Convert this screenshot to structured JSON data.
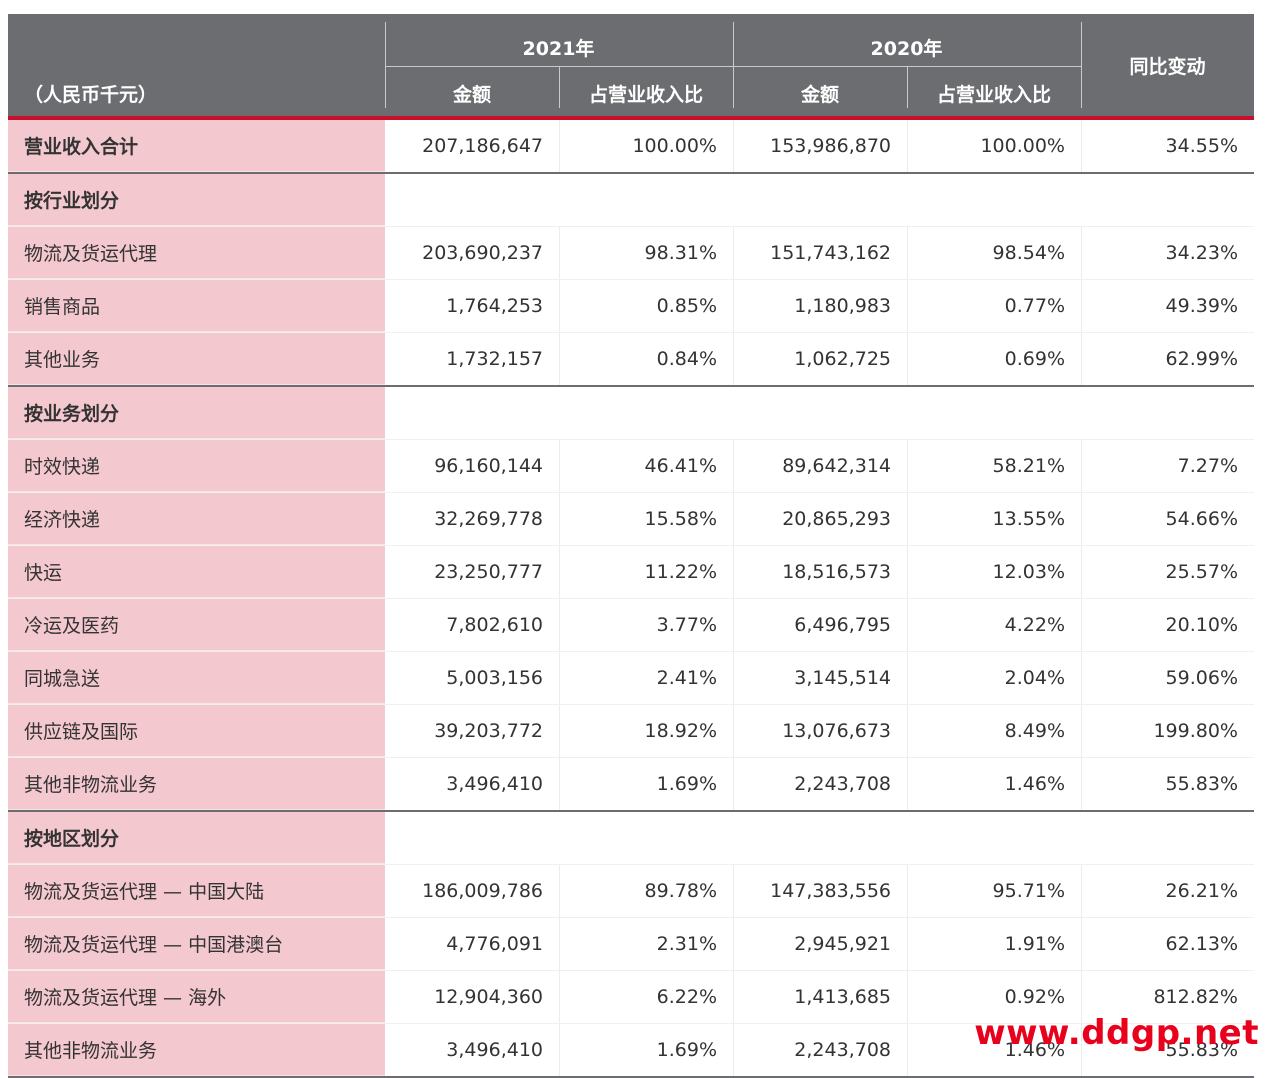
{
  "header": {
    "unit_label": "（人民币千元）",
    "year_2021": "2021年",
    "year_2020": "2020年",
    "amount": "金额",
    "share": "占营业收入比",
    "yoy": "同比变动"
  },
  "rows": [
    {
      "type": "total",
      "label": "营业收入合计",
      "a2021": "207,186,647",
      "p2021": "100.00%",
      "a2020": "153,986,870",
      "p2020": "100.00%",
      "yoy": "34.55%"
    },
    {
      "type": "section",
      "label": "按行业划分"
    },
    {
      "type": "data",
      "label": "物流及货运代理",
      "a2021": "203,690,237",
      "p2021": "98.31%",
      "a2020": "151,743,162",
      "p2020": "98.54%",
      "yoy": "34.23%"
    },
    {
      "type": "data",
      "label": "销售商品",
      "a2021": "1,764,253",
      "p2021": "0.85%",
      "a2020": "1,180,983",
      "p2020": "0.77%",
      "yoy": "49.39%"
    },
    {
      "type": "data",
      "label": "其他业务",
      "a2021": "1,732,157",
      "p2021": "0.84%",
      "a2020": "1,062,725",
      "p2020": "0.69%",
      "yoy": "62.99%"
    },
    {
      "type": "section",
      "label": "按业务划分"
    },
    {
      "type": "data",
      "label": "时效快递",
      "a2021": "96,160,144",
      "p2021": "46.41%",
      "a2020": "89,642,314",
      "p2020": "58.21%",
      "yoy": "7.27%"
    },
    {
      "type": "data",
      "label": "经济快递",
      "a2021": "32,269,778",
      "p2021": "15.58%",
      "a2020": "20,865,293",
      "p2020": "13.55%",
      "yoy": "54.66%"
    },
    {
      "type": "data",
      "label": "快运",
      "a2021": "23,250,777",
      "p2021": "11.22%",
      "a2020": "18,516,573",
      "p2020": "12.03%",
      "yoy": "25.57%"
    },
    {
      "type": "data",
      "label": "冷运及医药",
      "a2021": "7,802,610",
      "p2021": "3.77%",
      "a2020": "6,496,795",
      "p2020": "4.22%",
      "yoy": "20.10%"
    },
    {
      "type": "data",
      "label": "同城急送",
      "a2021": "5,003,156",
      "p2021": "2.41%",
      "a2020": "3,145,514",
      "p2020": "2.04%",
      "yoy": "59.06%"
    },
    {
      "type": "data",
      "label": "供应链及国际",
      "a2021": "39,203,772",
      "p2021": "18.92%",
      "a2020": "13,076,673",
      "p2020": "8.49%",
      "yoy": "199.80%"
    },
    {
      "type": "data",
      "label": "其他非物流业务",
      "a2021": "3,496,410",
      "p2021": "1.69%",
      "a2020": "2,243,708",
      "p2020": "1.46%",
      "yoy": "55.83%"
    },
    {
      "type": "section",
      "label": "按地区划分"
    },
    {
      "type": "data",
      "label": "物流及货运代理 — 中国大陆",
      "a2021": "186,009,786",
      "p2021": "89.78%",
      "a2020": "147,383,556",
      "p2020": "95.71%",
      "yoy": "26.21%"
    },
    {
      "type": "data",
      "label": "物流及货运代理 — 中国港澳台",
      "a2021": "4,776,091",
      "p2021": "2.31%",
      "a2020": "2,945,921",
      "p2020": "1.91%",
      "yoy": "62.13%"
    },
    {
      "type": "data",
      "label": "物流及货运代理 — 海外",
      "a2021": "12,904,360",
      "p2021": "6.22%",
      "a2020": "1,413,685",
      "p2020": "0.92%",
      "yoy": "812.82%"
    },
    {
      "type": "data",
      "label": "其他非物流业务",
      "a2021": "3,496,410",
      "p2021": "1.69%",
      "a2020": "2,243,708",
      "p2020": "1.46%",
      "yoy": "55.83%"
    }
  ],
  "watermark": "www.ddgp.net"
}
